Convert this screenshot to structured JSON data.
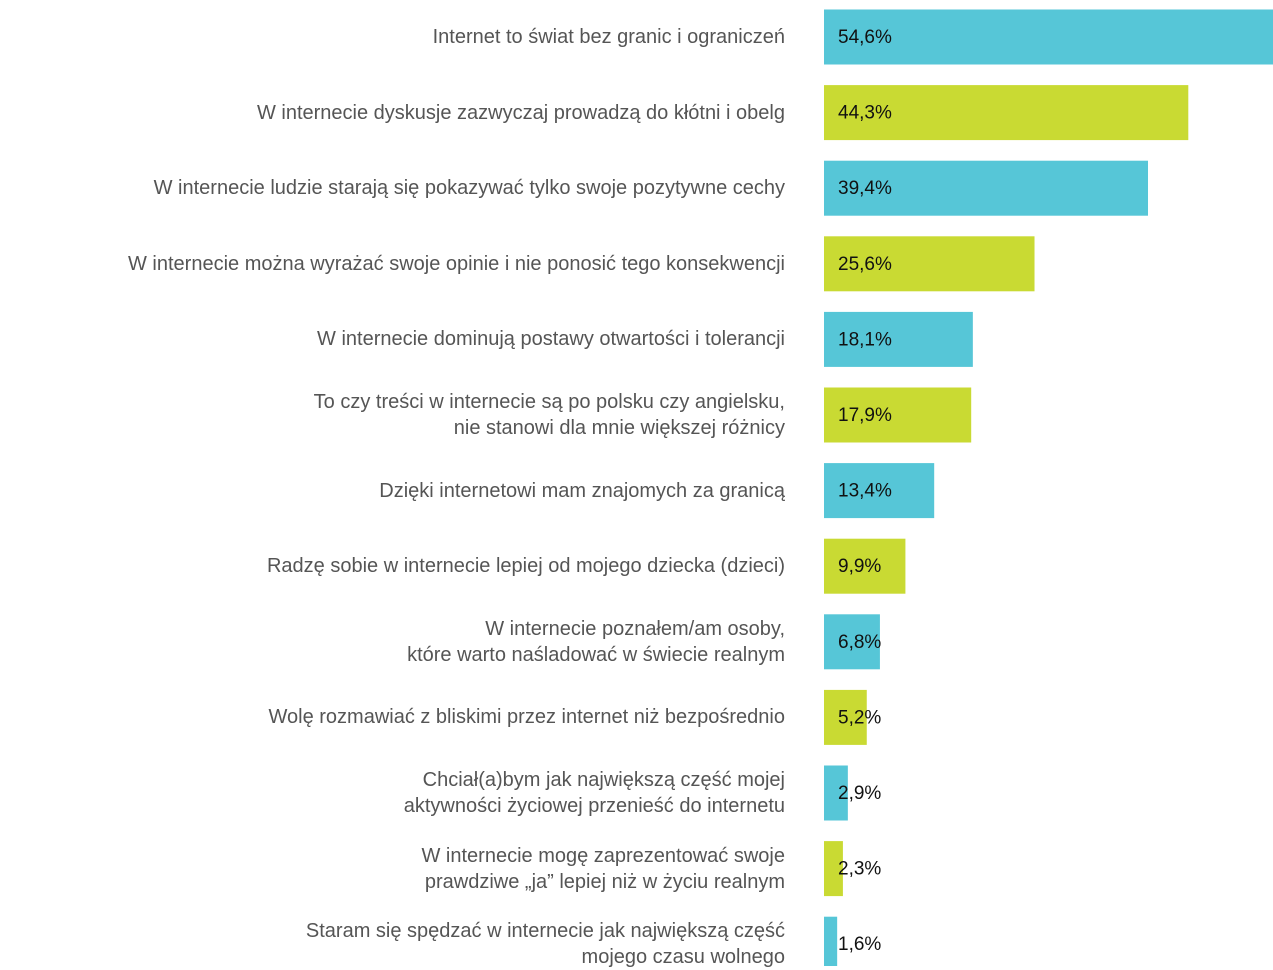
{
  "chart_data": {
    "type": "bar",
    "orientation": "horizontal",
    "categories": [
      "Internet to świat bez granic i ograniczeń",
      "W internecie dyskusje zazwyczaj prowadzą do kłótni i obelg",
      "W internecie ludzie starają się pokazywać tylko swoje pozytywne cechy",
      "W internecie można wyrażać swoje opinie i nie ponosić tego konsekwencji",
      "W internecie dominują postawy otwartości i tolerancji",
      "To czy treści w internecie są po polsku czy angielsku,\nnie stanowi dla mnie większej różnicy",
      "Dzięki internetowi mam znajomych za granicą",
      "Radzę sobie w internecie lepiej od mojego dziecka (dzieci)",
      "W internecie poznałem/am osoby,\nktóre warto naśladować w świecie realnym",
      "Wolę rozmawiać z bliskimi przez internet niż bezpośrednio",
      "Chciał(a)bym jak największą część mojej\naktywności życiowej przenieść do internetu",
      "W internecie mogę zaprezentować swoje\nprawdziwe „ja” lepiej niż w życiu realnym",
      "Staram się spędzać w internecie jak największą część\nmojego czasu wolnego"
    ],
    "values": [
      54.6,
      44.3,
      39.4,
      25.6,
      18.1,
      17.9,
      13.4,
      9.9,
      6.8,
      5.2,
      2.9,
      2.3,
      1.6
    ],
    "value_labels": [
      "54,6%",
      "44,3%",
      "39,4%",
      "25,6%",
      "18,1%",
      "17,9%",
      "13,4%",
      "9,9%",
      "6,8%",
      "5,2%",
      "2,9%",
      "2,3%",
      "1,6%"
    ],
    "colors": [
      "#56c6d7",
      "#c9da33",
      "#56c6d7",
      "#c9da33",
      "#56c6d7",
      "#c9da33",
      "#56c6d7",
      "#c9da33",
      "#56c6d7",
      "#c9da33",
      "#56c6d7",
      "#c9da33",
      "#56c6d7"
    ]
  }
}
